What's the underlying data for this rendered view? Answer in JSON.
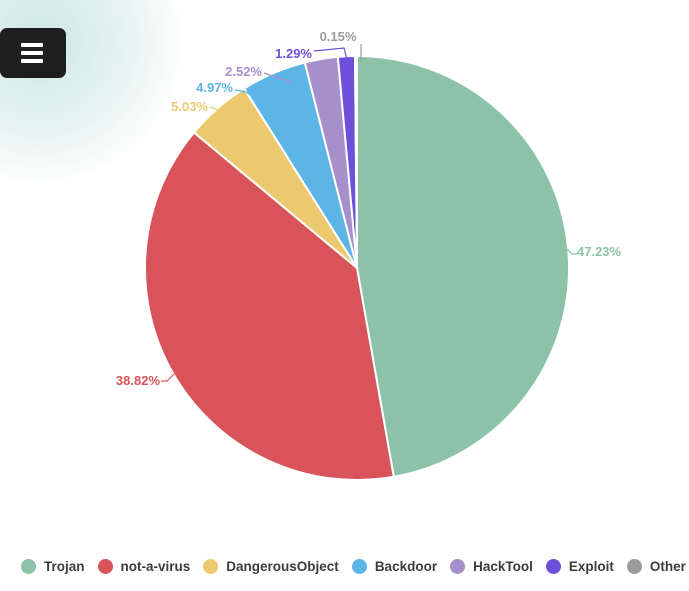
{
  "menu": {
    "icon": "hamburger-icon"
  },
  "chart_data": {
    "type": "pie",
    "title": "",
    "series": [
      {
        "name": "Trojan",
        "value": 47.23,
        "label": "47.23%",
        "color": "#8cc3a8"
      },
      {
        "name": "not-a-virus",
        "value": 38.82,
        "label": "38.82%",
        "color": "#d8545a"
      },
      {
        "name": "DangerousObject",
        "value": 5.03,
        "label": "5.03%",
        "color": "#ecc96f"
      },
      {
        "name": "Backdoor",
        "value": 4.97,
        "label": "4.97%",
        "color": "#5db5e6"
      },
      {
        "name": "HackTool",
        "value": 2.52,
        "label": "2.52%",
        "color": "#a78fcb"
      },
      {
        "name": "Exploit",
        "value": 1.29,
        "label": "1.29%",
        "color": "#6d50d9"
      },
      {
        "name": "Other",
        "value": 0.15,
        "label": "0.15%",
        "color": "#9b9b9b"
      }
    ],
    "start_angle_deg": 90,
    "clockwise": true,
    "label_position": "outside",
    "legend_position": "bottom"
  },
  "legend": {
    "items": [
      "Trojan",
      "not-a-virus",
      "DangerousObject",
      "Backdoor",
      "HackTool",
      "Exploit",
      "Other"
    ],
    "text_color": "#3c3c3c"
  }
}
